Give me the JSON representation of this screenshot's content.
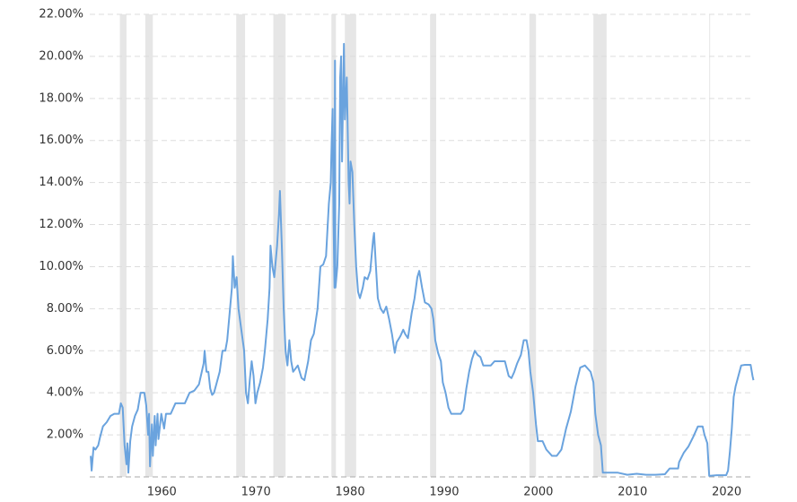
{
  "chart_data": {
    "type": "line",
    "xlim": [
      1954.4,
      2024.95
    ],
    "ylim": [
      0,
      22
    ],
    "yticks": [
      {
        "value": 2,
        "label": "2.00%"
      },
      {
        "value": 4,
        "label": "4.00%"
      },
      {
        "value": 6,
        "label": "6.00%"
      },
      {
        "value": 8,
        "label": "8.00%"
      },
      {
        "value": 10,
        "label": "10.00%"
      },
      {
        "value": 12,
        "label": "12.00%"
      },
      {
        "value": 14,
        "label": "14.00%"
      },
      {
        "value": 16,
        "label": "16.00%"
      },
      {
        "value": 18,
        "label": "18.00%"
      },
      {
        "value": 20,
        "label": "20.00%"
      },
      {
        "value": 22,
        "label": "22.00%"
      }
    ],
    "xticks": [
      1960,
      1970,
      1980,
      1990,
      2000,
      2010,
      2020
    ],
    "grid": true,
    "shaded_periods": [
      [
        1957.6,
        1958.3
      ],
      [
        1960.3,
        1961.1
      ],
      [
        1969.96,
        1970.9
      ],
      [
        1973.9,
        1975.2
      ],
      [
        1980.07,
        1980.55
      ],
      [
        1981.5,
        1982.7
      ],
      [
        1990.55,
        1991.2
      ],
      [
        2001.1,
        2001.8
      ],
      [
        2007.9,
        2009.3
      ],
      [
        2020.2,
        2020.3
      ]
    ],
    "shade_color": "#e6e6e6",
    "x": [
      1954.5,
      1954.6,
      1954.8,
      1955.0,
      1955.3,
      1955.5,
      1955.8,
      1956.2,
      1956.6,
      1957.0,
      1957.5,
      1957.7,
      1957.9,
      1958.1,
      1958.3,
      1958.4,
      1958.5,
      1958.7,
      1958.9,
      1959.2,
      1959.5,
      1959.8,
      1960.2,
      1960.4,
      1960.6,
      1960.7,
      1960.8,
      1961.0,
      1961.1,
      1961.3,
      1961.4,
      1961.6,
      1961.7,
      1962.0,
      1962.3,
      1962.5,
      1963.0,
      1963.5,
      1964.0,
      1964.5,
      1965.0,
      1965.5,
      1966.0,
      1966.3,
      1966.5,
      1966.6,
      1966.8,
      1967.0,
      1967.2,
      1967.4,
      1967.6,
      1967.9,
      1968.2,
      1968.5,
      1968.8,
      1969.0,
      1969.3,
      1969.5,
      1969.6,
      1969.8,
      1970.0,
      1970.2,
      1970.5,
      1970.8,
      1971.0,
      1971.2,
      1971.4,
      1971.6,
      1971.8,
      1972.0,
      1972.2,
      1972.5,
      1972.8,
      1973.0,
      1973.3,
      1973.5,
      1973.6,
      1973.8,
      1974.0,
      1974.3,
      1974.5,
      1974.6,
      1974.8,
      1975.0,
      1975.2,
      1975.4,
      1975.6,
      1975.8,
      1976.0,
      1976.5,
      1976.9,
      1977.2,
      1977.6,
      1977.9,
      1978.2,
      1978.6,
      1978.9,
      1979.2,
      1979.5,
      1979.8,
      1980.0,
      1980.1,
      1980.2,
      1980.3,
      1980.4,
      1980.45,
      1980.5,
      1980.7,
      1980.9,
      1981.0,
      1981.1,
      1981.2,
      1981.4,
      1981.5,
      1981.7,
      1981.9,
      1982.0,
      1982.1,
      1982.3,
      1982.5,
      1982.7,
      1982.9,
      1983.1,
      1983.4,
      1983.6,
      1983.9,
      1984.2,
      1984.5,
      1984.6,
      1984.8,
      1985.0,
      1985.3,
      1985.6,
      1985.9,
      1986.2,
      1986.5,
      1986.8,
      1987.0,
      1987.4,
      1987.7,
      1987.9,
      1988.2,
      1988.6,
      1988.9,
      1989.2,
      1989.4,
      1989.7,
      1990.0,
      1990.4,
      1990.7,
      1990.9,
      1991.1,
      1991.4,
      1991.7,
      1991.9,
      1992.2,
      1992.5,
      1992.8,
      1993.3,
      1993.8,
      1994.1,
      1994.4,
      1994.7,
      1995.0,
      1995.3,
      1995.6,
      1995.9,
      1996.2,
      1996.6,
      1997.0,
      1997.4,
      1997.8,
      1998.2,
      1998.5,
      1998.9,
      1999.2,
      1999.5,
      1999.8,
      2000.2,
      2000.5,
      2000.8,
      2001.0,
      2001.2,
      2001.5,
      2001.8,
      2002.0,
      2002.5,
      2002.9,
      2003.5,
      2004.0,
      2004.5,
      2005.0,
      2005.5,
      2006.0,
      2006.5,
      2007.0,
      2007.6,
      2007.9,
      2008.1,
      2008.4,
      2008.7,
      2008.9,
      2009.5,
      2010.5,
      2011.5,
      2012.5,
      2013.5,
      2014.5,
      2015.5,
      2016.0,
      2016.9,
      2017.0,
      2017.5,
      2018.0,
      2018.5,
      2019.0,
      2019.5,
      2019.7,
      2020.0,
      2020.2,
      2021.0,
      2022.0,
      2022.2,
      2022.4,
      2022.6,
      2022.8,
      2023.0,
      2023.3,
      2023.6,
      2024.0,
      2024.6,
      2024.8,
      2024.9
    ],
    "series": [
      {
        "color": "#6aa3de",
        "values": [
          1.0,
          0.3,
          1.4,
          1.3,
          1.5,
          1.9,
          2.4,
          2.6,
          2.9,
          3.0,
          3.0,
          3.5,
          3.3,
          1.5,
          0.6,
          1.6,
          0.2,
          1.7,
          2.4,
          2.9,
          3.2,
          4.0,
          4.0,
          3.4,
          2.0,
          3.0,
          0.5,
          2.5,
          1.0,
          2.9,
          1.5,
          3.0,
          1.8,
          3.0,
          2.3,
          3.0,
          3.0,
          3.5,
          3.5,
          3.5,
          4.0,
          4.1,
          4.4,
          5.0,
          5.4,
          6.0,
          5.0,
          5.0,
          4.2,
          3.9,
          4.0,
          4.5,
          5.0,
          6.0,
          6.0,
          6.5,
          8.0,
          9.0,
          10.5,
          9.0,
          9.5,
          8.0,
          7.0,
          6.0,
          4.0,
          3.5,
          4.6,
          5.5,
          4.8,
          3.5,
          4.0,
          4.5,
          5.2,
          6.0,
          7.5,
          9.0,
          11.0,
          10.0,
          9.5,
          11.0,
          12.5,
          13.6,
          11.0,
          8.0,
          6.0,
          5.3,
          6.5,
          5.5,
          5.0,
          5.3,
          4.7,
          4.6,
          5.5,
          6.5,
          6.8,
          8.0,
          10.0,
          10.1,
          10.5,
          13.0,
          14.0,
          16.0,
          17.5,
          12.0,
          9.0,
          19.8,
          9.0,
          10.0,
          13.0,
          19.0,
          20.0,
          15.0,
          20.6,
          17.0,
          19.0,
          14.0,
          13.0,
          15.0,
          14.5,
          12.0,
          10.0,
          8.8,
          8.5,
          9.0,
          9.5,
          9.4,
          9.8,
          11.3,
          11.6,
          10.0,
          8.5,
          8.0,
          7.8,
          8.1,
          7.5,
          6.8,
          5.9,
          6.4,
          6.7,
          7.0,
          6.8,
          6.6,
          7.8,
          8.5,
          9.5,
          9.8,
          9.0,
          8.3,
          8.2,
          8.0,
          7.5,
          6.5,
          5.9,
          5.5,
          4.5,
          4.0,
          3.3,
          3.0,
          3.0,
          3.0,
          3.2,
          4.2,
          5.0,
          5.6,
          6.0,
          5.8,
          5.7,
          5.3,
          5.3,
          5.3,
          5.5,
          5.5,
          5.5,
          5.5,
          4.8,
          4.7,
          5.0,
          5.4,
          5.8,
          6.5,
          6.5,
          6.0,
          5.0,
          4.0,
          2.5,
          1.7,
          1.7,
          1.3,
          1.0,
          1.0,
          1.3,
          2.3,
          3.1,
          4.3,
          5.2,
          5.3,
          5.0,
          4.5,
          3.0,
          2.0,
          1.5,
          0.2,
          0.2,
          0.2,
          0.1,
          0.15,
          0.1,
          0.1,
          0.13,
          0.4,
          0.4,
          0.7,
          1.15,
          1.45,
          1.9,
          2.4,
          2.4,
          2.0,
          1.6,
          0.05,
          0.08,
          0.08,
          0.3,
          1.2,
          2.3,
          3.8,
          4.3,
          4.8,
          5.3,
          5.33,
          5.33,
          4.8,
          4.6
        ]
      }
    ]
  }
}
